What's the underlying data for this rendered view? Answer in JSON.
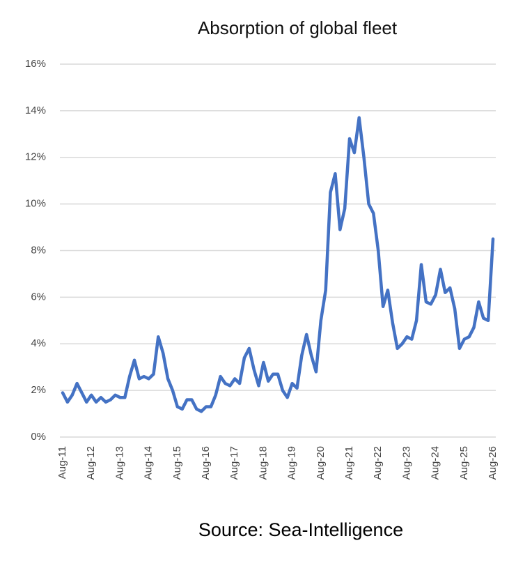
{
  "chart_data": {
    "type": "line",
    "title": "Absorption of global fleet",
    "source": "Source: Sea-Intelligence",
    "categories": [
      "Aug-11",
      null,
      null,
      null,
      null,
      null,
      "Aug-12",
      null,
      null,
      null,
      null,
      null,
      "Aug-13",
      null,
      null,
      null,
      null,
      null,
      "Aug-14",
      null,
      null,
      null,
      null,
      null,
      "Aug-15",
      null,
      null,
      null,
      null,
      null,
      "Aug-16",
      null,
      null,
      null,
      null,
      null,
      "Aug-17",
      null,
      null,
      null,
      null,
      null,
      "Aug-18",
      null,
      null,
      null,
      null,
      null,
      "Aug-19",
      null,
      null,
      null,
      null,
      null,
      "Aug-20",
      null,
      null,
      null,
      null,
      null,
      "Aug-21",
      null,
      null,
      null,
      null,
      null,
      "Aug-22",
      null,
      null,
      null,
      null,
      null,
      "Aug-23",
      null,
      null,
      null,
      null,
      null,
      "Aug-24",
      null,
      null,
      null,
      null,
      null,
      "Aug-25",
      null,
      null,
      null,
      null,
      null,
      "Aug-26"
    ],
    "values": [
      1.9,
      1.5,
      1.8,
      2.3,
      1.9,
      1.5,
      1.8,
      1.5,
      1.7,
      1.5,
      1.6,
      1.8,
      1.7,
      1.7,
      2.6,
      3.3,
      2.5,
      2.6,
      2.5,
      2.7,
      4.3,
      3.6,
      2.5,
      2.0,
      1.3,
      1.2,
      1.6,
      1.6,
      1.2,
      1.1,
      1.3,
      1.3,
      1.8,
      2.6,
      2.3,
      2.2,
      2.5,
      2.3,
      3.4,
      3.8,
      2.9,
      2.2,
      3.2,
      2.4,
      2.7,
      2.7,
      2.0,
      1.7,
      2.3,
      2.1,
      3.5,
      4.4,
      3.5,
      2.8,
      5.0,
      6.3,
      10.5,
      11.3,
      8.9,
      9.8,
      12.8,
      12.2,
      13.7,
      12.0,
      10.0,
      9.6,
      8.0,
      5.6,
      6.3,
      4.9,
      3.8,
      4.0,
      4.3,
      4.2,
      5.0,
      7.4,
      5.8,
      5.7,
      6.1,
      7.2,
      6.2,
      6.4,
      5.5,
      3.8,
      4.2,
      4.3,
      4.7,
      5.8,
      5.1,
      5.0,
      8.5
    ],
    "color": "#4472c4",
    "ylim": [
      0,
      16
    ],
    "yticks": [
      {
        "value": 0,
        "label": "0%"
      },
      {
        "value": 2,
        "label": "2%"
      },
      {
        "value": 4,
        "label": "4%"
      },
      {
        "value": 6,
        "label": "6%"
      },
      {
        "value": 8,
        "label": "8%"
      },
      {
        "value": 10,
        "label": "10%"
      },
      {
        "value": 12,
        "label": "12%"
      },
      {
        "value": 14,
        "label": "14%"
      },
      {
        "value": 16,
        "label": "16%"
      }
    ],
    "grid": true
  }
}
